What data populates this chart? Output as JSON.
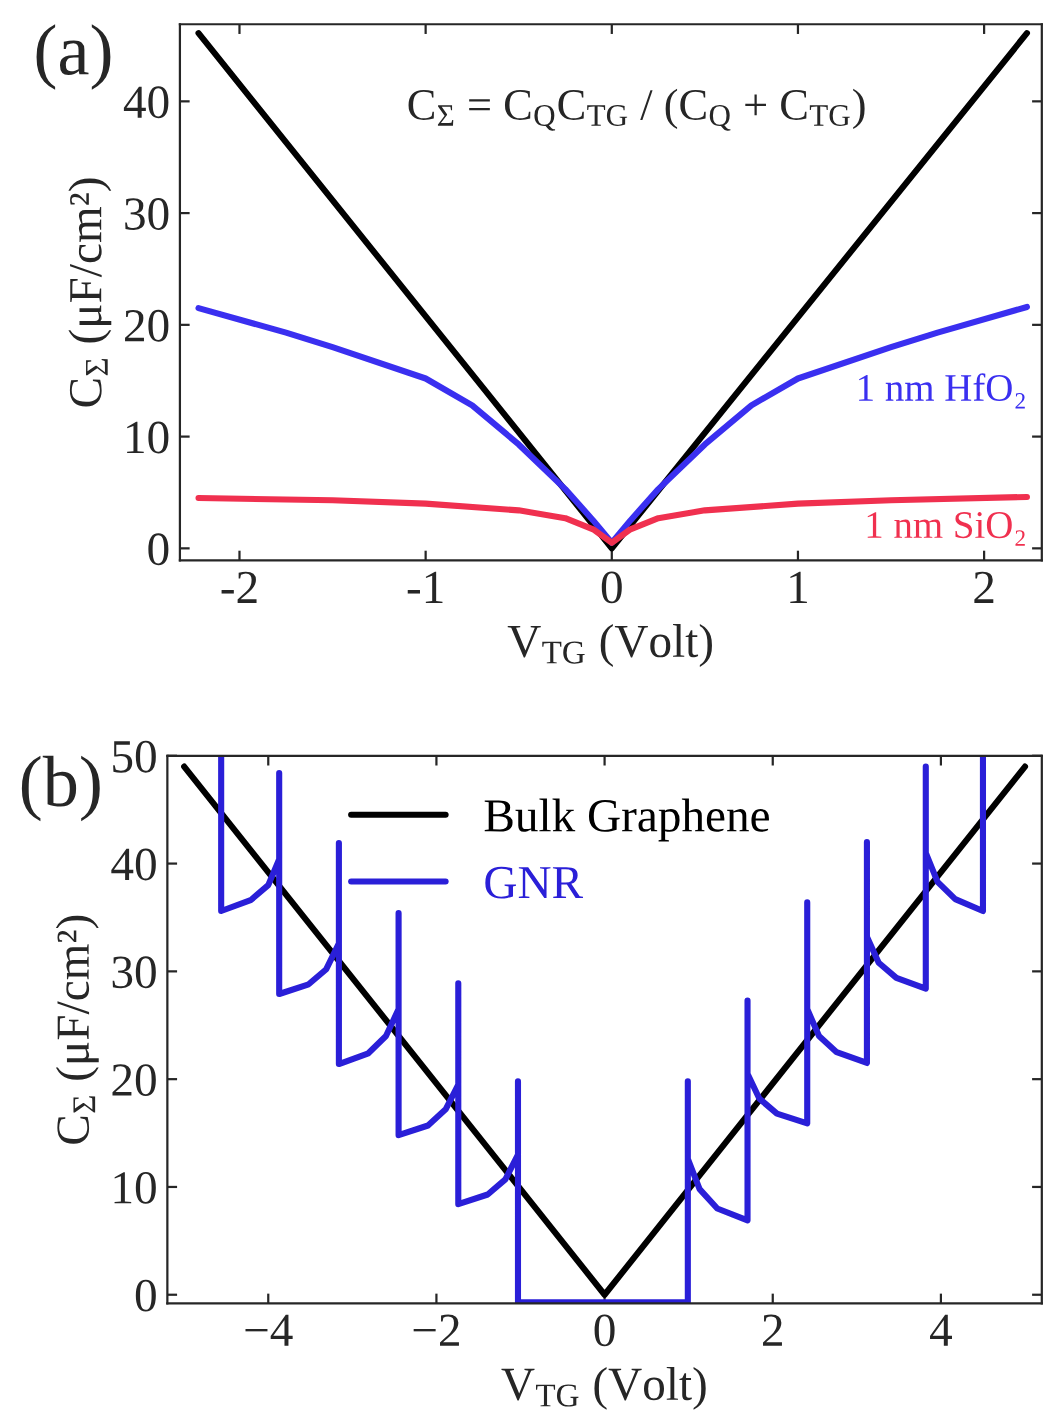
{
  "chart_data": [
    {
      "type": "line",
      "title": "(a)",
      "xlabel": "V$_{TG}$ (Volt)",
      "ylabel": "C$_{Σ}$ (μF/cm²)",
      "annotations": [
        "C$_{Σ}$ = C$_{Q}$C$_{TG}$ / (C$_{Q}$ + C$_{TG}$)"
      ],
      "xlim": [
        -2.32,
        2.31
      ],
      "ylim": [
        -1.08,
        46.9
      ],
      "xticks": [
        -2,
        -1,
        0,
        1,
        2
      ],
      "yticks": [
        0,
        10,
        20,
        30,
        40
      ],
      "grid": false,
      "legend": false,
      "series": [
        {
          "color": "#000000",
          "x": [
            -2.22,
            0,
            2.23
          ],
          "values": [
            46.1,
            0,
            46.1
          ]
        },
        {
          "name": "1 nm HfO₂",
          "color": "#3a2ff0",
          "x": [
            -2.22,
            -1.75,
            -1.5,
            -1.0,
            -0.75,
            -0.5,
            -0.25,
            -0.1,
            0,
            0.1,
            0.25,
            0.5,
            0.75,
            1.0,
            1.5,
            1.75,
            2.23
          ],
          "values": [
            21.5,
            19.3,
            18.0,
            15.2,
            12.8,
            9.3,
            5.3,
            2.5,
            0.5,
            2.5,
            5.3,
            9.3,
            12.8,
            15.2,
            18.0,
            19.3,
            21.6
          ]
        },
        {
          "name": "1 nm SiO₂",
          "color": "#f0304f",
          "x": [
            -2.22,
            -1.5,
            -1.0,
            -0.5,
            -0.25,
            -0.1,
            0,
            0.1,
            0.25,
            0.5,
            1.0,
            1.5,
            2.23
          ],
          "values": [
            4.5,
            4.3,
            4.0,
            3.4,
            2.7,
            1.7,
            0.5,
            1.7,
            2.7,
            3.4,
            4.0,
            4.3,
            4.6
          ]
        }
      ]
    },
    {
      "type": "line",
      "title": "(b)",
      "xlabel": "V$_{TG}$ (Volt)",
      "ylabel": "C$_{Σ}$ (μF/cm²)",
      "xlim": [
        -5.2,
        5.2
      ],
      "ylim": [
        -0.8,
        50
      ],
      "xticks": [
        {
          "value": -4,
          "label": "−4"
        },
        {
          "value": -2,
          "label": "−2"
        },
        0,
        2,
        4
      ],
      "yticks": [
        0,
        10,
        20,
        30,
        40,
        50
      ],
      "grid": false,
      "legend": "top",
      "series": [
        {
          "name": "Bulk Graphene",
          "color": "#000000",
          "x": [
            -5,
            0,
            5
          ],
          "values": [
            49,
            0,
            49
          ]
        },
        {
          "name": "GNR",
          "color": "#2a1fd8",
          "x": [
            -4.56,
            -4.56,
            -4.21,
            -4.0,
            -3.87,
            -3.87,
            -3.87,
            -3.52,
            -3.31,
            -3.16,
            -3.16,
            -3.16,
            -2.81,
            -2.6,
            -2.45,
            -2.45,
            -2.45,
            -2.1,
            -1.89,
            -1.74,
            -1.74,
            -1.74,
            -1.39,
            -1.18,
            -1.03,
            -1.03,
            -1.03,
            0.99,
            0.99,
            0.99,
            1.13,
            1.34,
            1.7,
            1.7,
            1.7,
            1.84,
            2.05,
            2.41,
            2.41,
            2.41,
            2.55,
            2.76,
            3.12,
            3.12,
            3.12,
            3.26,
            3.47,
            3.82,
            3.82,
            3.82,
            3.96,
            4.17,
            4.5,
            4.5
          ],
          "values": [
            50,
            35.6,
            36.6,
            38.0,
            40.4,
            48.4,
            27.9,
            28.8,
            30.2,
            32.6,
            41.9,
            21.4,
            22.4,
            24.0,
            26.5,
            35.4,
            14.8,
            15.7,
            17.2,
            19.5,
            28.9,
            8.4,
            9.3,
            10.7,
            13,
            19.8,
            -0.7,
            -0.7,
            19.8,
            12.6,
            9.8,
            8.0,
            6.9,
            27.3,
            20.5,
            18.2,
            16.8,
            15.9,
            36.4,
            26.5,
            24.0,
            22.5,
            21.5,
            42,
            33.2,
            30.8,
            29.4,
            28.4,
            49,
            41,
            38.3,
            36.7,
            35.6,
            50
          ]
        }
      ]
    }
  ]
}
